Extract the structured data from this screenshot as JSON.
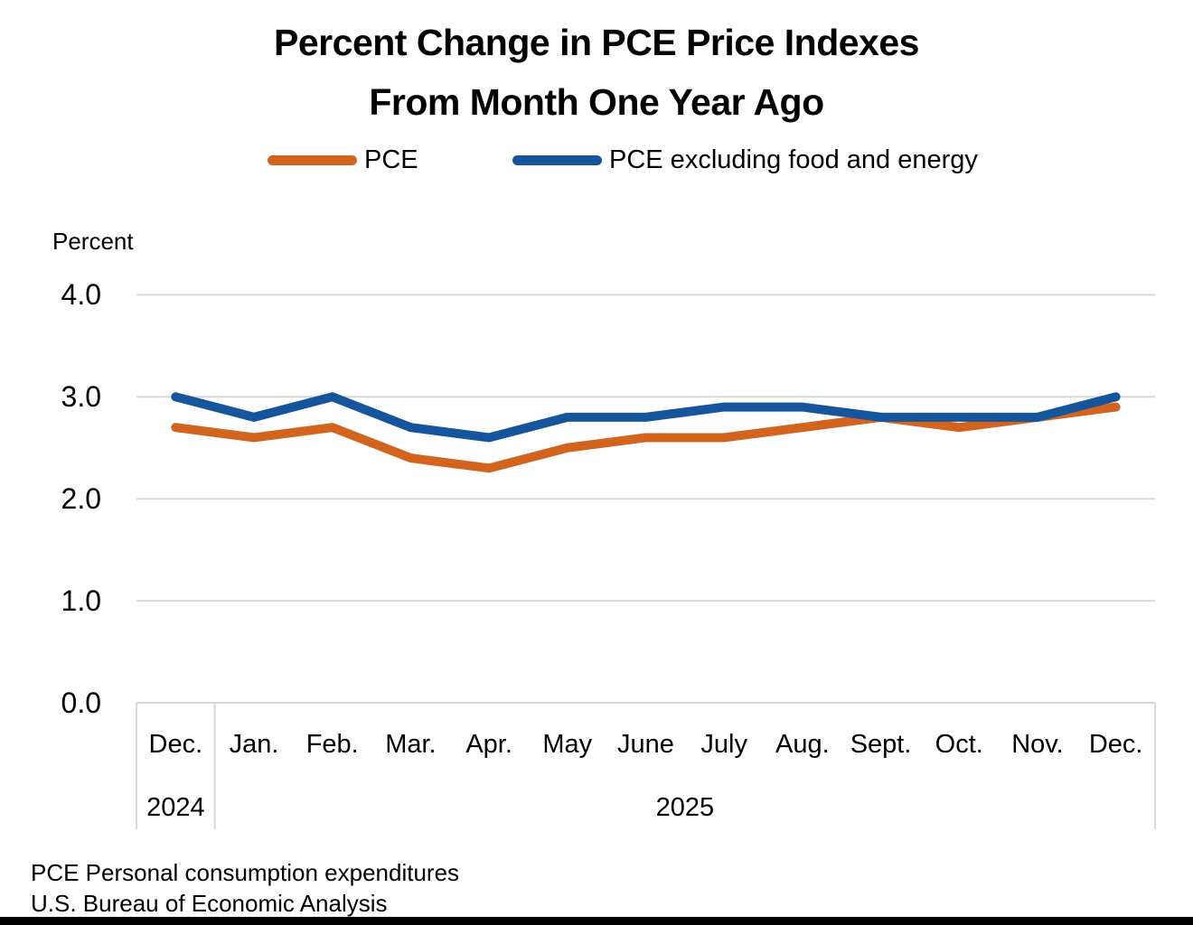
{
  "page": {
    "title_line1": "Percent Change in PCE Price Indexes",
    "title_line2": "From Month One Year Ago",
    "footer_line1": "PCE Personal consumption expenditures",
    "footer_line2": "U.S. Bureau of Economic Analysis"
  },
  "chart_data": {
    "type": "line",
    "title": "Percent Change in PCE Price Indexes From Month One Year Ago",
    "ylabel": "Percent",
    "ylim": [
      0,
      4
    ],
    "ytick_labels": [
      "4.0",
      "3.0",
      "2.0",
      "1.0",
      "0.0"
    ],
    "grid": "horizontal-only",
    "legend_position": "top",
    "gridline_color": "#D9D9D9",
    "categories": [
      "Dec.",
      "Jan.",
      "Feb.",
      "Mar.",
      "Apr.",
      "May",
      "June",
      "July",
      "Aug.",
      "Sept.",
      "Oct.",
      "Nov.",
      "Dec."
    ],
    "year_groups": [
      {
        "label": "2024",
        "start": 0,
        "end": 0
      },
      {
        "label": "2025",
        "start": 1,
        "end": 12
      }
    ],
    "series": [
      {
        "name": "PCE",
        "color": "#D2641E",
        "values": [
          2.7,
          2.6,
          2.7,
          2.4,
          2.3,
          2.5,
          2.6,
          2.6,
          2.7,
          2.8,
          2.7,
          2.8,
          2.9
        ]
      },
      {
        "name": "PCE excluding food and energy",
        "color": "#15559B",
        "values": [
          3.0,
          2.8,
          3.0,
          2.7,
          2.6,
          2.8,
          2.8,
          2.9,
          2.9,
          2.8,
          2.8,
          2.8,
          3.0
        ]
      }
    ]
  }
}
